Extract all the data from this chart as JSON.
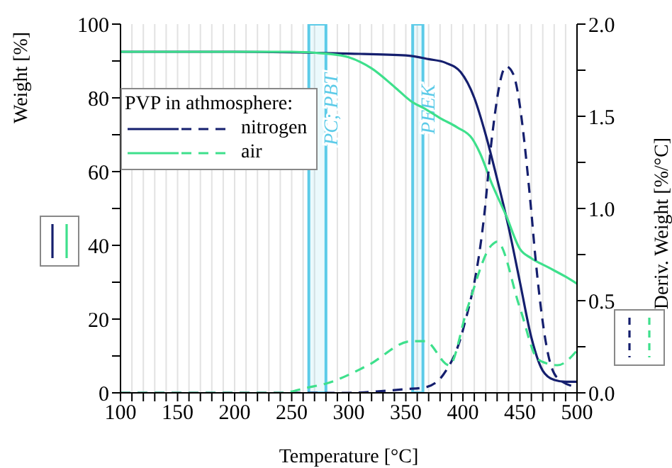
{
  "chart_data": {
    "type": "line",
    "xlabel": "Temperature [°C]",
    "ylabel": "Weight [%]",
    "y2label": "Deriv. Weight [%/°C]",
    "legend_title": "PVP in athmosphere:",
    "legend": "left",
    "grid": "x",
    "line_style": "solid",
    "marker": "none",
    "xlim": [
      100,
      500
    ],
    "ylim": [
      0,
      100
    ],
    "y2lim": [
      0,
      2
    ],
    "xticks": [
      100,
      {
        "value": 110,
        "label": null
      },
      {
        "value": 120,
        "label": null
      },
      {
        "value": 130,
        "label": null
      },
      {
        "value": 140,
        "label": null
      },
      150,
      {
        "value": 160,
        "label": null
      },
      {
        "value": 170,
        "label": null
      },
      {
        "value": 180,
        "label": null
      },
      {
        "value": 190,
        "label": null
      },
      200,
      {
        "value": 210,
        "label": null
      },
      {
        "value": 220,
        "label": null
      },
      {
        "value": 230,
        "label": null
      },
      {
        "value": 240,
        "label": null
      },
      250,
      {
        "value": 260,
        "label": null
      },
      {
        "value": 270,
        "label": null
      },
      {
        "value": 280,
        "label": null
      },
      {
        "value": 290,
        "label": null
      },
      300,
      {
        "value": 310,
        "label": null
      },
      {
        "value": 320,
        "label": null
      },
      {
        "value": 330,
        "label": null
      },
      {
        "value": 340,
        "label": null
      },
      350,
      {
        "value": 360,
        "label": null
      },
      {
        "value": 370,
        "label": null
      },
      {
        "value": 380,
        "label": null
      },
      {
        "value": 390,
        "label": null
      },
      400,
      {
        "value": 410,
        "label": null
      },
      {
        "value": 420,
        "label": null
      },
      {
        "value": 430,
        "label": null
      },
      {
        "value": 440,
        "label": null
      },
      450,
      {
        "value": 460,
        "label": null
      },
      {
        "value": 470,
        "label": null
      },
      {
        "value": 480,
        "label": null
      },
      {
        "value": 490,
        "label": null
      },
      500
    ],
    "yticks": [
      0,
      {
        "value": 10,
        "label": null
      },
      20,
      {
        "value": 30,
        "label": null
      },
      40,
      {
        "value": 50,
        "label": null
      },
      60,
      {
        "value": 70,
        "label": null
      },
      80,
      {
        "value": 90,
        "label": null
      },
      100
    ],
    "y2ticks": [
      {
        "value": 0,
        "label": "0.0"
      },
      {
        "value": 0.25,
        "label": null
      },
      0.5,
      {
        "value": 0.75,
        "label": null
      },
      {
        "value": 1,
        "label": "1.0"
      },
      {
        "value": 1.25,
        "label": null
      },
      1.5,
      {
        "value": 1.75,
        "label": null
      },
      {
        "value": 2,
        "label": "2.0"
      }
    ],
    "bands": [
      {
        "axis": "x",
        "from": 265,
        "to": 280,
        "label": "PC; PBT",
        "color": "#5ccbe8"
      },
      {
        "axis": "x",
        "from": 356,
        "to": 365,
        "label": "PEEK",
        "color": "#5ccbe8"
      }
    ],
    "series": [
      {
        "name": "nitrogen",
        "color": "#151f6e",
        "x": [
          100,
          200,
          300,
          350,
          370,
          385,
          398,
          410,
          420,
          430,
          440,
          450,
          460,
          470,
          480,
          490,
          500
        ],
        "values": [
          92.5,
          92.5,
          92,
          91.5,
          90.5,
          89.5,
          87,
          80,
          70,
          58,
          45,
          30,
          15,
          6,
          3.5,
          3,
          3
        ]
      },
      {
        "name": "air",
        "color": "#3ee08c",
        "x": [
          100,
          250,
          280,
          300,
          320,
          340,
          355,
          367,
          380,
          395,
          408,
          415,
          425,
          438,
          450,
          460,
          475,
          490,
          500
        ],
        "values": [
          92.5,
          92.5,
          92,
          91,
          88,
          83,
          79,
          77,
          74.5,
          72,
          69,
          65,
          57,
          48,
          39,
          36.5,
          34,
          31.5,
          29.6
        ]
      },
      {
        "color": "#151f6e",
        "axis": "y2",
        "line_style": "dashed",
        "x": [
          100,
          300,
          330,
          350,
          367,
          383,
          400,
          419,
          425,
          438,
          444,
          460,
          463,
          475,
          483,
          500
        ],
        "values": [
          0,
          0,
          0.01,
          0.02,
          0.03,
          0.1,
          0.34,
          0.98,
          1.36,
          1.77,
          1.73,
          0.98,
          0.77,
          0.2,
          0.08,
          0.03
        ]
      },
      {
        "color": "#3ee08c",
        "axis": "y2",
        "line_style": "dashed",
        "x": [
          100,
          240,
          265,
          280,
          317,
          355,
          367,
          388,
          404,
          425,
          430,
          450,
          466,
          483,
          500
        ],
        "values": [
          0,
          0,
          0.03,
          0.05,
          0.15,
          0.28,
          0.28,
          0.15,
          0.46,
          0.8,
          0.82,
          0.46,
          0.18,
          0.15,
          0.23
        ]
      }
    ]
  }
}
